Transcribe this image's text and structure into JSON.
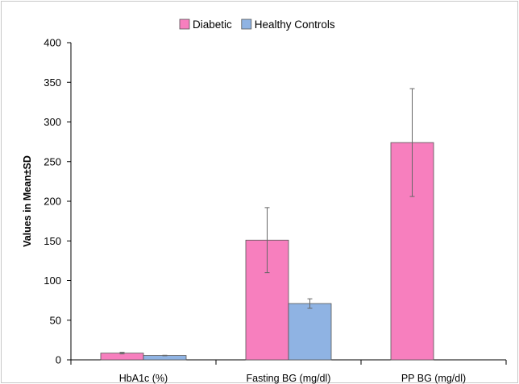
{
  "chart_data": {
    "type": "bar",
    "categories": [
      "HbA1c (%)",
      "Fasting BG  (mg/dl)",
      "PP BG  (mg/dl)"
    ],
    "series": [
      {
        "name": "Diabetic",
        "color": "#f77fbe",
        "values": [
          8.5,
          151,
          274
        ],
        "sd": [
          1.0,
          41,
          68
        ]
      },
      {
        "name": "Healthy Controls",
        "color": "#8fb3e3",
        "values": [
          5.5,
          71,
          null
        ],
        "sd": [
          0.3,
          6,
          null
        ]
      }
    ],
    "xlabel": "",
    "ylabel": "Values in Mean±SD",
    "ylim": [
      0,
      400
    ],
    "yticks": [
      0,
      50,
      100,
      150,
      200,
      250,
      300,
      350,
      400
    ],
    "grid": false,
    "legend_position": "top"
  }
}
